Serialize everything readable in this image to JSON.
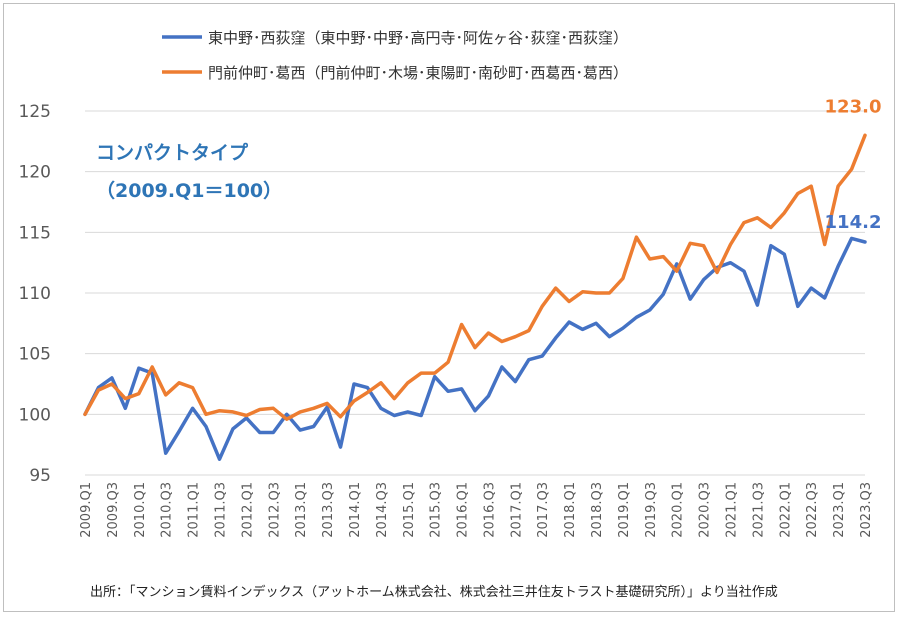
{
  "chart_data": {
    "type": "line",
    "x": [
      "2009.Q1",
      "2009.Q2",
      "2009.Q3",
      "2009.Q4",
      "2010.Q1",
      "2010.Q2",
      "2010.Q3",
      "2010.Q4",
      "2011.Q1",
      "2011.Q2",
      "2011.Q3",
      "2011.Q4",
      "2012.Q1",
      "2012.Q2",
      "2012.Q3",
      "2012.Q4",
      "2013.Q1",
      "2013.Q2",
      "2013.Q3",
      "2013.Q4",
      "2014.Q1",
      "2014.Q2",
      "2014.Q3",
      "2014.Q4",
      "2015.Q1",
      "2015.Q2",
      "2015.Q3",
      "2015.Q4",
      "2016.Q1",
      "2016.Q2",
      "2016.Q3",
      "2016.Q4",
      "2017.Q1",
      "2017.Q2",
      "2017.Q3",
      "2017.Q4",
      "2018.Q1",
      "2018.Q2",
      "2018.Q3",
      "2018.Q4",
      "2019.Q1",
      "2019.Q2",
      "2019.Q3",
      "2019.Q4",
      "2020.Q1",
      "2020.Q2",
      "2020.Q3",
      "2020.Q4",
      "2021.Q1",
      "2021.Q2",
      "2021.Q3",
      "2021.Q4",
      "2022.Q1",
      "2022.Q2",
      "2022.Q3",
      "2022.Q4",
      "2023.Q1",
      "2023.Q2",
      "2023.Q3"
    ],
    "x_tick_labels": [
      "2009.Q1",
      "2009.Q3",
      "2010.Q1",
      "2010.Q3",
      "2011.Q1",
      "2011.Q3",
      "2012.Q1",
      "2012.Q3",
      "2013.Q1",
      "2013.Q3",
      "2014.Q1",
      "2014.Q3",
      "2015.Q1",
      "2015.Q3",
      "2016.Q1",
      "2016.Q3",
      "2017.Q1",
      "2017.Q3",
      "2018.Q1",
      "2018.Q3",
      "2019.Q1",
      "2019.Q3",
      "2020.Q1",
      "2020.Q3",
      "2021.Q1",
      "2021.Q3",
      "2022.Q1",
      "2022.Q3",
      "2023.Q1",
      "2023.Q3"
    ],
    "series": [
      {
        "name": "東中野･西荻窪（東中野･中野･高円寺･阿佐ヶ谷･荻窪･西荻窪）",
        "color": "#4472c4",
        "values": [
          100.0,
          102.2,
          103.0,
          100.5,
          103.8,
          103.4,
          96.8,
          98.6,
          100.5,
          99.0,
          96.3,
          98.8,
          99.7,
          98.5,
          98.5,
          100.0,
          98.7,
          99.0,
          100.6,
          97.3,
          102.5,
          102.2,
          100.5,
          99.9,
          100.2,
          99.9,
          103.1,
          101.9,
          102.1,
          100.3,
          101.5,
          103.9,
          102.7,
          104.5,
          104.8,
          106.3,
          107.6,
          107.0,
          107.5,
          106.4,
          107.1,
          108.0,
          108.6,
          109.9,
          112.4,
          109.5,
          111.1,
          112.1,
          112.5,
          111.8,
          109.0,
          113.9,
          113.2,
          108.9,
          110.4,
          109.6,
          112.2,
          114.5,
          114.2
        ]
      },
      {
        "name": "門前仲町･葛西（門前仲町･木場･東陽町･南砂町･西葛西･葛西）",
        "color": "#ed7d31",
        "values": [
          100.0,
          102.0,
          102.5,
          101.3,
          101.7,
          103.9,
          101.6,
          102.6,
          102.2,
          100.0,
          100.3,
          100.2,
          99.9,
          100.4,
          100.5,
          99.6,
          100.2,
          100.5,
          100.9,
          99.8,
          101.1,
          101.8,
          102.6,
          101.3,
          102.6,
          103.4,
          103.4,
          104.3,
          107.4,
          105.5,
          106.7,
          106.0,
          106.4,
          106.9,
          108.9,
          110.4,
          109.3,
          110.1,
          110.0,
          110.0,
          111.2,
          114.6,
          112.8,
          113.0,
          111.8,
          114.1,
          113.9,
          111.7,
          114.0,
          115.8,
          116.2,
          115.4,
          116.6,
          118.2,
          118.8,
          114.0,
          118.8,
          120.2,
          123.0
        ]
      }
    ],
    "ylim": [
      95,
      125
    ],
    "yticks": [
      95,
      100,
      105,
      110,
      115,
      120,
      125
    ],
    "grid": "horizontal",
    "legend_position": "top",
    "annotation_title": "コンパクトタイプ",
    "annotation_base": "（2009.Q1＝100）",
    "end_label_1": "114.2",
    "end_label_2": "123.0",
    "source_note": "出所：「マンション賃料インデックス（アットホーム株式会社、株式会社三井住友トラスト基礎研究所）」より当社作成"
  }
}
